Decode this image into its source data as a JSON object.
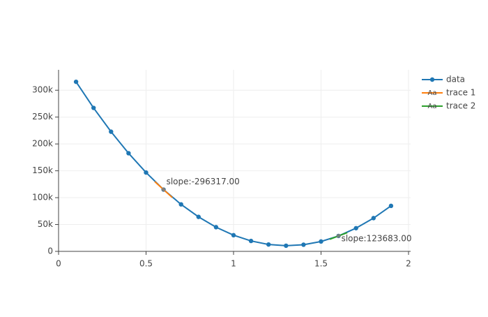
{
  "chart_data": {
    "type": "line",
    "series": [
      {
        "name": "data",
        "color": "#1f77b4",
        "mode": "lines+markers",
        "x": [
          0.1,
          0.2,
          0.3,
          0.4,
          0.5,
          0.6,
          0.7,
          0.8,
          0.9,
          1.0,
          1.1,
          1.2,
          1.3,
          1.4,
          1.5,
          1.6,
          1.7,
          1.8,
          1.9
        ],
        "values": [
          315700,
          267100,
          222800,
          182700,
          146800,
          115000,
          87500,
          64200,
          45000,
          30100,
          19400,
          12800,
          10500,
          12400,
          18400,
          28700,
          43200,
          61900,
          84700
        ]
      },
      {
        "name": "trace 1",
        "color": "#ff7f0e",
        "mode": "lines+text",
        "legend_symbol": "Aa",
        "x": [
          0.55,
          0.65
        ],
        "values": [
          129816,
          100184
        ]
      },
      {
        "name": "trace 2",
        "color": "#2ca02c",
        "mode": "lines+text",
        "legend_symbol": "Aa",
        "x": [
          1.55,
          1.65
        ],
        "values": [
          22516,
          34884
        ]
      }
    ],
    "annotations": [
      {
        "text": "slope:-296317.00",
        "x": 0.6,
        "y": 115000
      },
      {
        "text": "slope:123683.00",
        "x": 1.6,
        "y": 28700
      }
    ],
    "xlim": [
      0,
      2
    ],
    "xticks": [
      0,
      0.5,
      1,
      1.5,
      2
    ],
    "ylim": [
      0,
      338000
    ],
    "yticks": [
      0,
      {
        "value": 50000,
        "label": "50k"
      },
      {
        "value": 100000,
        "label": "100k"
      },
      {
        "value": 150000,
        "label": "150k"
      },
      {
        "value": 200000,
        "label": "200k"
      },
      {
        "value": 250000,
        "label": "250k"
      },
      {
        "value": 300000,
        "label": "300k"
      }
    ],
    "grid": true
  }
}
